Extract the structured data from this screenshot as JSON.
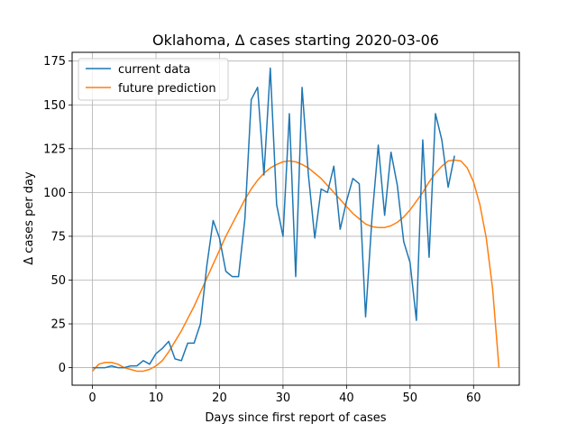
{
  "chart_data": {
    "type": "line",
    "title": "Oklahoma, Δ cases starting 2020-03-06",
    "xlabel": "Days since first report of cases",
    "ylabel": "Δ cases per day",
    "xlim": [
      -3.2,
      67.2
    ],
    "ylim": [
      -10,
      180
    ],
    "xticks": [
      0,
      10,
      20,
      30,
      40,
      50,
      60
    ],
    "yticks": [
      0,
      25,
      50,
      75,
      100,
      125,
      150,
      175
    ],
    "grid": true,
    "legend": "top-left",
    "series": [
      {
        "name": "current data",
        "color": "#1f77b4",
        "x": [
          0,
          1,
          2,
          3,
          4,
          5,
          6,
          7,
          8,
          9,
          10,
          11,
          12,
          13,
          14,
          15,
          16,
          17,
          18,
          19,
          20,
          21,
          22,
          23,
          24,
          25,
          26,
          27,
          28,
          29,
          30,
          31,
          32,
          33,
          34,
          35,
          36,
          37,
          38,
          39,
          40,
          41,
          42,
          43,
          44,
          45,
          46,
          47,
          48,
          49,
          50,
          51,
          52,
          53,
          54,
          55,
          56,
          57
        ],
        "y": [
          0,
          0,
          0,
          1,
          0,
          0,
          1,
          1,
          4,
          2,
          8,
          11,
          15,
          5,
          4,
          14,
          14,
          25,
          58,
          84,
          74,
          55,
          52,
          52,
          85,
          153,
          160,
          110,
          171,
          93,
          75,
          145,
          52,
          160,
          110,
          74,
          102,
          100,
          115,
          79,
          95,
          108,
          105,
          29,
          85,
          127,
          87,
          123,
          104,
          72,
          60,
          27,
          130,
          63,
          145,
          130,
          103,
          121
        ]
      },
      {
        "name": "future prediction",
        "color": "#ff7f0e",
        "x": [
          0,
          1,
          2,
          3,
          4,
          5,
          6,
          7,
          8,
          9,
          10,
          11,
          12,
          13,
          14,
          15,
          16,
          17,
          18,
          19,
          20,
          21,
          22,
          23,
          24,
          25,
          26,
          27,
          28,
          29,
          30,
          31,
          32,
          33,
          34,
          35,
          36,
          37,
          38,
          39,
          40,
          41,
          42,
          43,
          44,
          45,
          46,
          47,
          48,
          49,
          50,
          51,
          52,
          53,
          54,
          55,
          56,
          57,
          58,
          59,
          60,
          61,
          62,
          63,
          64
        ],
        "y": [
          -2,
          2,
          3,
          3,
          2,
          0,
          -1,
          -2,
          -2,
          -1,
          1,
          4,
          9,
          15,
          21,
          28,
          35,
          43,
          51,
          59,
          67,
          75,
          82,
          89,
          96,
          102,
          107,
          111,
          114,
          116,
          117.5,
          118,
          117.5,
          116,
          114,
          111,
          108,
          104,
          100,
          96,
          92,
          88,
          85,
          82,
          80.5,
          80,
          80,
          81,
          83,
          86,
          90,
          95,
          100,
          106,
          111,
          115,
          118,
          118.5,
          118,
          114,
          106,
          93,
          74,
          45,
          0
        ]
      }
    ]
  }
}
